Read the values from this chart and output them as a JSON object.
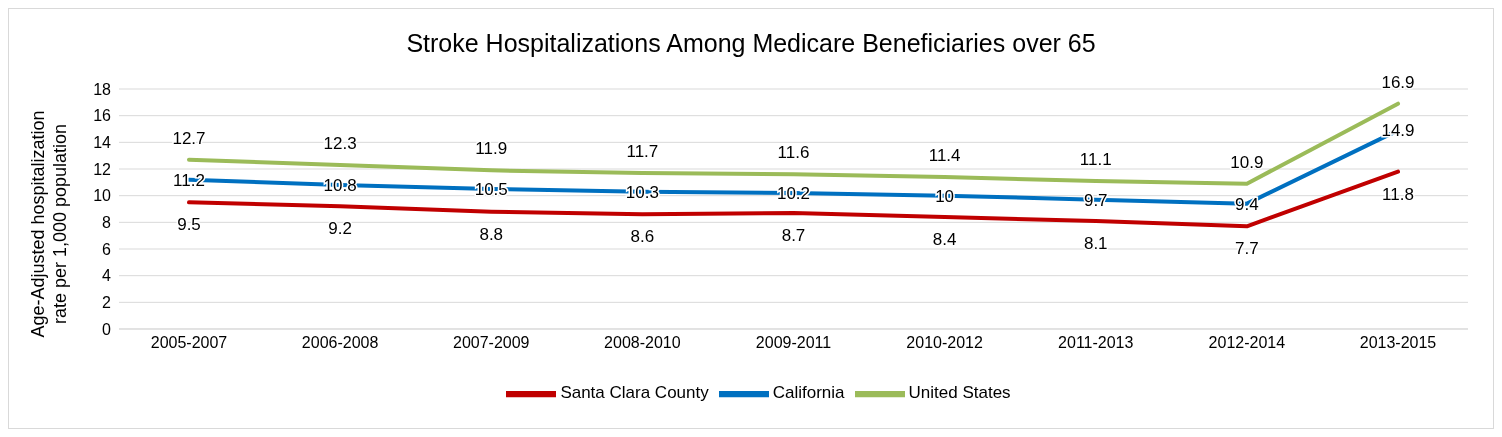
{
  "chart_data": {
    "type": "line",
    "title": "Stroke Hospitalizations Among Medicare Beneficiaries over 65",
    "ylabel": "Age-Adjusted hospitalization rate per 1,000 population",
    "categories": [
      "2005-2007",
      "2006-2008",
      "2007-2009",
      "2008-2010",
      "2009-2011",
      "2010-2012",
      "2011-2013",
      "2012-2014",
      "2013-2015"
    ],
    "series": [
      {
        "name": "Santa Clara County",
        "color": "#c00000",
        "values": [
          9.5,
          9.2,
          8.8,
          8.6,
          8.7,
          8.4,
          8.1,
          7.7,
          11.8
        ]
      },
      {
        "name": "California",
        "color": "#0070c0",
        "values": [
          11.2,
          10.8,
          10.5,
          10.3,
          10.2,
          10,
          9.7,
          9.4,
          14.9
        ]
      },
      {
        "name": "United States",
        "color": "#9bbb59",
        "values": [
          12.7,
          12.3,
          11.9,
          11.7,
          11.6,
          11.4,
          11.1,
          10.9,
          16.9
        ]
      }
    ],
    "ylim": [
      0,
      18
    ],
    "yticks": [
      0,
      2,
      4,
      6,
      8,
      10,
      12,
      14,
      16,
      18
    ],
    "grid": "y",
    "legend": "bottom",
    "data_labels": true,
    "marker": "none",
    "line_style": "solid"
  }
}
